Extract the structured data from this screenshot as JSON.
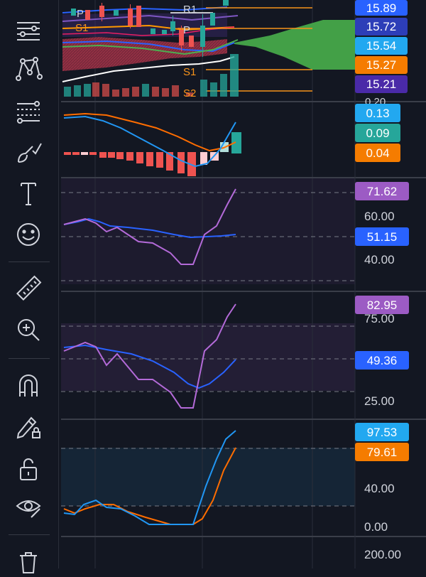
{
  "colors": {
    "background": "#131722",
    "grid": "#2a2e39",
    "up_candle": "#26a69a",
    "down_candle": "#ef5350",
    "pivot_line": "#f7931a",
    "blue_line": "#2962ff",
    "purple_line": "#b36ad8",
    "orange_line": "#ff6d00",
    "cloud_green": "#43a047"
  },
  "toolbar": {
    "tools": [
      {
        "name": "horizontal-lines-icon",
        "label": "Horizontal lines"
      },
      {
        "name": "pattern-icon",
        "label": "Patterns"
      },
      {
        "name": "fib-icon",
        "label": "Fib retracement"
      },
      {
        "name": "brush-icon",
        "label": "Brush"
      },
      {
        "name": "text-icon",
        "label": "Text"
      },
      {
        "name": "emoji-icon",
        "label": "Icons"
      },
      {
        "name": "ruler-icon",
        "label": "Measure"
      },
      {
        "name": "zoom-in-icon",
        "label": "Zoom in"
      },
      {
        "name": "magnet-icon",
        "label": "Magnet mode"
      },
      {
        "name": "lock-drawing-icon",
        "label": "Lock drawings"
      },
      {
        "name": "unlock-icon",
        "label": "Lock all"
      },
      {
        "name": "eye-icon",
        "label": "Hide drawings"
      },
      {
        "name": "trash-icon",
        "label": "Remove"
      }
    ]
  },
  "main_pane": {
    "pivot_labels": {
      "r1": "R1",
      "p_top": "P",
      "s1_left": "S1",
      "p_mid": "P",
      "s1": "S1",
      "s2": "S2"
    },
    "price_badges": [
      {
        "text": "15.89",
        "color": "#2962ff"
      },
      {
        "text": "15.72",
        "color": "#2d3eb8"
      },
      {
        "text": "15.54",
        "color": "#22a8f0"
      },
      {
        "text": "15.27",
        "color": "#f57c00"
      },
      {
        "text": "15.21",
        "color": "#4a2aa8"
      }
    ],
    "cut_off_label": "0.20"
  },
  "macd_pane": {
    "badges": [
      {
        "text": "0.13",
        "color": "#22a8f0"
      },
      {
        "text": "0.09",
        "color": "#26a69a"
      },
      {
        "text": "0.04",
        "color": "#f57c00"
      }
    ]
  },
  "rsi_pane": {
    "scale": [
      "60.00",
      "40.00"
    ],
    "badges": [
      {
        "text": "71.62",
        "color": "#9c5bc4"
      },
      {
        "text": "51.15",
        "color": "#2962ff"
      }
    ]
  },
  "pane4": {
    "scale": [
      "75.00",
      "25.00"
    ],
    "badges": [
      {
        "text": "82.95",
        "color": "#9c5bc4"
      },
      {
        "text": "49.36",
        "color": "#2962ff"
      }
    ]
  },
  "stoch_pane": {
    "scale": [
      "40.00",
      "0.00"
    ],
    "badges": [
      {
        "text": "97.53",
        "color": "#22a8f0"
      },
      {
        "text": "79.61",
        "color": "#f57c00"
      }
    ]
  },
  "bottom_pane": {
    "scale": [
      "200.00"
    ]
  }
}
